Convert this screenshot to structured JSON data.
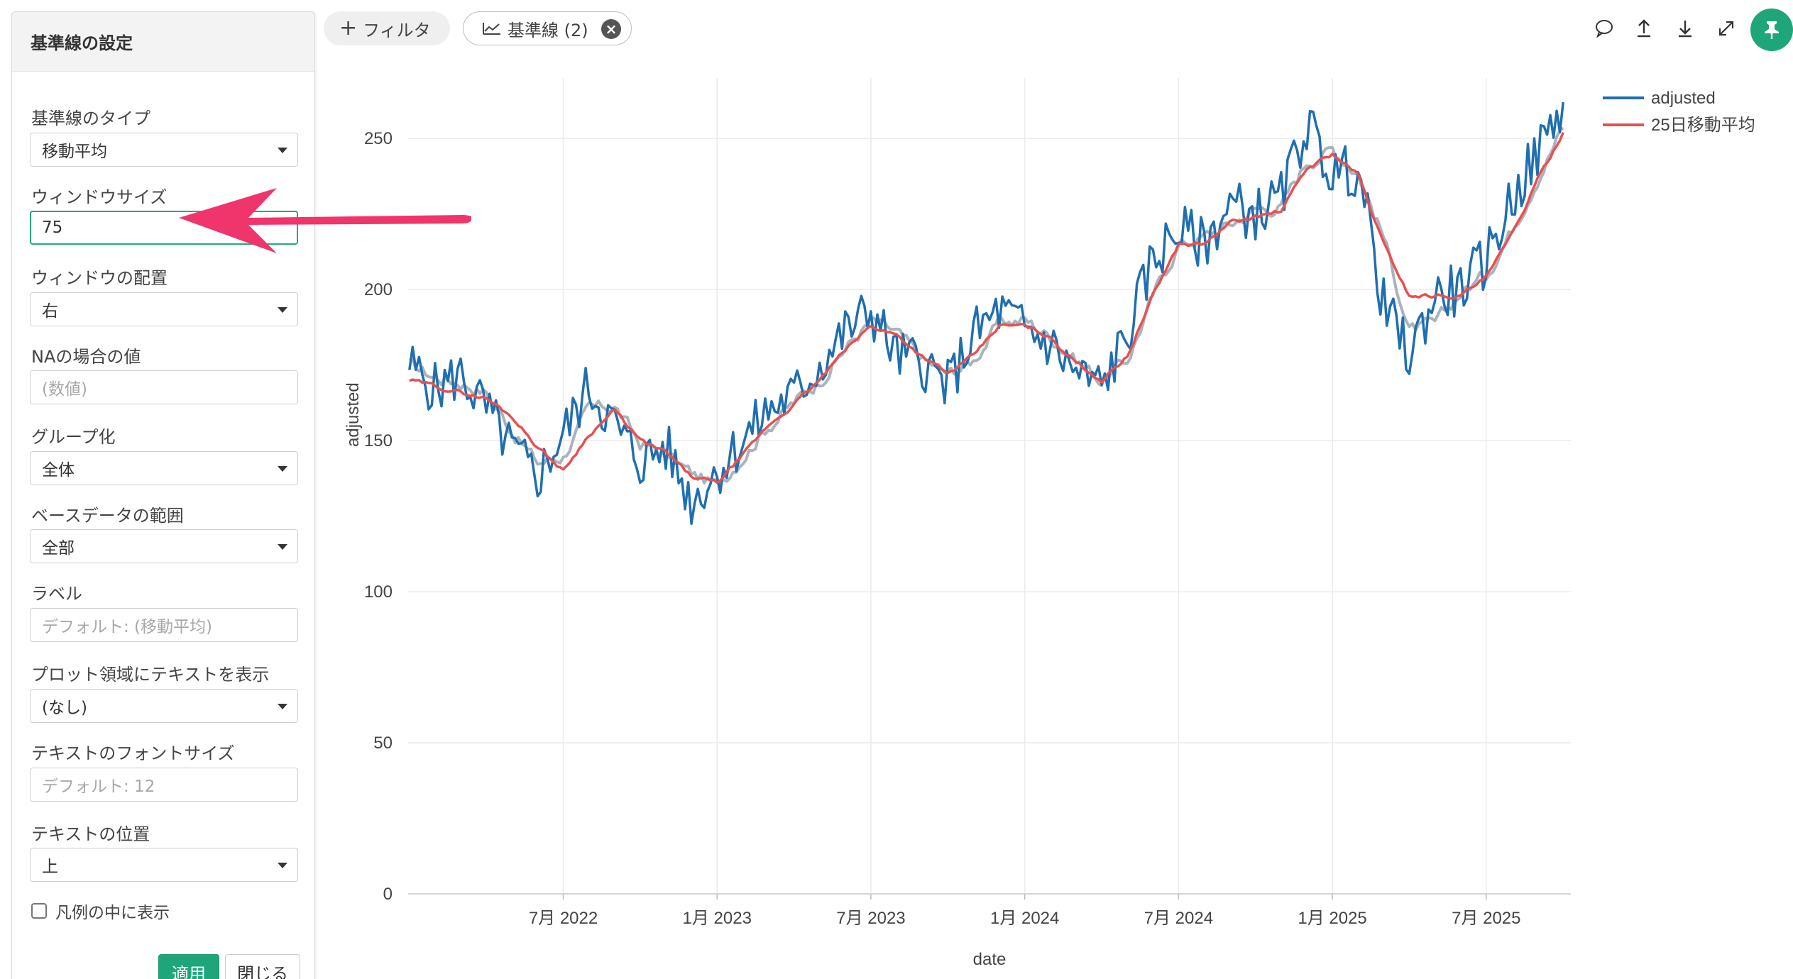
{
  "panel": {
    "title": "基準線の設定",
    "fields": {
      "type_label": "基準線のタイプ",
      "type_value": "移動平均",
      "window_label": "ウィンドウサイズ",
      "window_value": "75",
      "placement_label": "ウィンドウの配置",
      "placement_value": "右",
      "na_label": "NAの場合の値",
      "na_placeholder": "(数値)",
      "group_label": "グループ化",
      "group_value": "全体",
      "base_label": "ベースデータの範囲",
      "base_value": "全部",
      "label_label": "ラベル",
      "label_placeholder": "デフォルト: (移動平均)",
      "plot_text_label": "プロット領域にテキストを表示",
      "plot_text_value": "(なし)",
      "font_size_label": "テキストのフォントサイズ",
      "font_size_placeholder": "デフォルト: 12",
      "position_label": "テキストの位置",
      "position_value": "上",
      "legend_checkbox_label": "凡例の中に表示"
    },
    "apply_label": "適用",
    "close_label": "閉じる"
  },
  "chips": {
    "filter_label": "フィルタ",
    "baseline_label": "基準線 (2)"
  },
  "toolbar": {
    "icons": [
      "comment-icon",
      "upload-icon",
      "download-icon",
      "expand-icon",
      "pin-icon"
    ]
  },
  "colors": {
    "accent": "#1fa57a",
    "series_adjusted": "#1f6fb0",
    "series_ma25": "#e85050",
    "series_ma75": "#a9b3bd",
    "arrow": "#f0346c"
  },
  "chart_data": {
    "type": "line",
    "xlabel": "date",
    "ylabel": "adjusted",
    "ylim": [
      0,
      270
    ],
    "yticks": [
      "0",
      "50",
      "100",
      "150",
      "200",
      "250"
    ],
    "xticks": [
      "7月 2022",
      "1月 2023",
      "7月 2023",
      "1月 2024",
      "7月 2024",
      "1月 2025",
      "7月 2025"
    ],
    "grid": true,
    "legend_position": "top-right",
    "x": [
      "2022-01",
      "2022-02",
      "2022-03",
      "2022-04",
      "2022-05",
      "2022-06",
      "2022-07",
      "2022-08",
      "2022-09",
      "2022-10",
      "2022-11",
      "2022-12",
      "2023-01",
      "2023-02",
      "2023-03",
      "2023-04",
      "2023-05",
      "2023-06",
      "2023-07",
      "2023-08",
      "2023-09",
      "2023-10",
      "2023-11",
      "2023-12",
      "2024-01",
      "2024-02",
      "2024-03",
      "2024-04",
      "2024-05",
      "2024-06",
      "2024-07",
      "2024-08",
      "2024-09",
      "2024-10",
      "2024-11",
      "2024-12",
      "2025-01",
      "2025-02",
      "2025-03",
      "2025-04",
      "2025-05",
      "2025-06",
      "2025-07",
      "2025-08",
      "2025-09",
      "2025-10"
    ],
    "series": [
      {
        "name": "adjusted",
        "values": [
          175,
          167,
          172,
          160,
          147,
          138,
          152,
          168,
          155,
          143,
          148,
          130,
          140,
          150,
          160,
          165,
          175,
          186,
          193,
          178,
          176,
          168,
          185,
          193,
          187,
          182,
          172,
          168,
          185,
          210,
          220,
          215,
          228,
          225,
          230,
          255,
          238,
          240,
          195,
          178,
          198,
          200,
          210,
          230,
          245,
          262
        ]
      },
      {
        "name": "25日移動平均",
        "values": [
          170,
          168,
          166,
          164,
          158,
          148,
          140,
          152,
          160,
          150,
          146,
          138,
          136,
          145,
          155,
          162,
          170,
          180,
          188,
          185,
          178,
          172,
          178,
          188,
          188,
          184,
          176,
          170,
          178,
          198,
          215,
          215,
          222,
          224,
          226,
          240,
          245,
          238,
          215,
          198,
          198,
          198,
          204,
          218,
          236,
          252
        ]
      }
    ]
  }
}
